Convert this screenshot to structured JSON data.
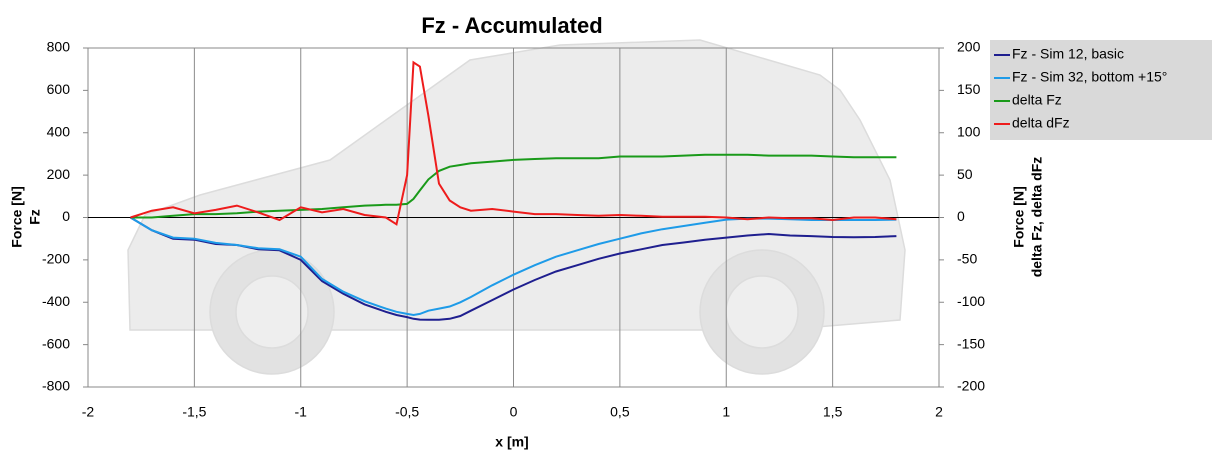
{
  "chart_data": {
    "type": "line",
    "title": "Fz - Accumulated",
    "xlabel": "x [m]",
    "ylabel": [
      "Force [N]",
      "Fz"
    ],
    "y2label": [
      "Force [N]",
      "delta Fz, delta dFz"
    ],
    "x": [
      -1.8,
      -1.7,
      -1.6,
      -1.5,
      -1.4,
      -1.3,
      -1.2,
      -1.1,
      -1.0,
      -0.9,
      -0.8,
      -0.7,
      -0.6,
      -0.55,
      -0.5,
      -0.47,
      -0.44,
      -0.4,
      -0.35,
      -0.3,
      -0.25,
      -0.2,
      -0.1,
      0,
      0.1,
      0.2,
      0.3,
      0.4,
      0.5,
      0.6,
      0.7,
      0.8,
      0.9,
      1.0,
      1.1,
      1.2,
      1.3,
      1.4,
      1.5,
      1.6,
      1.7,
      1.8
    ],
    "series": [
      {
        "name": "Fz - Sim 12, basic",
        "color": "#1f1f8f",
        "values": [
          0,
          -60,
          -100,
          -105,
          -125,
          -130,
          -150,
          -155,
          -200,
          -300,
          -360,
          -410,
          -445,
          -460,
          -470,
          -478,
          -482,
          -483,
          -483,
          -478,
          -465,
          -440,
          -390,
          -340,
          -295,
          -255,
          -225,
          -195,
          -170,
          -150,
          -130,
          -118,
          -105,
          -95,
          -85,
          -78,
          -85,
          -88,
          -92,
          -93,
          -92,
          -88
        ]
      },
      {
        "name": "Fz - Sim 32, bottom +15°",
        "color": "#1e9be8",
        "values": [
          0,
          -60,
          -95,
          -100,
          -120,
          -130,
          -145,
          -150,
          -185,
          -290,
          -350,
          -395,
          -430,
          -445,
          -455,
          -460,
          -455,
          -440,
          -430,
          -420,
          -400,
          -375,
          -320,
          -270,
          -225,
          -185,
          -155,
          -125,
          -100,
          -75,
          -55,
          -40,
          -25,
          -10,
          -5,
          -5,
          -8,
          -12,
          -12,
          -12,
          -12,
          -10
        ]
      },
      {
        "name": "delta Fz",
        "color": "#1a9a1a",
        "axis": "y2",
        "values": [
          0,
          0,
          2,
          4,
          4,
          5,
          7,
          8,
          9,
          10,
          12,
          14,
          15,
          15,
          16,
          22,
          32,
          45,
          55,
          60,
          62,
          64,
          66,
          68,
          69,
          70,
          70,
          70,
          72,
          72,
          72,
          73,
          74,
          74,
          74,
          73,
          73,
          73,
          72,
          71,
          71,
          71
        ]
      },
      {
        "name": "delta dFz",
        "color": "#ee1c1c",
        "axis": "y2",
        "values": [
          0,
          8,
          12,
          5,
          9,
          14,
          6,
          -3,
          12,
          6,
          10,
          3,
          0,
          -8,
          50,
          183,
          178,
          120,
          40,
          20,
          12,
          8,
          10,
          7,
          4,
          4,
          3,
          2,
          3,
          2,
          1,
          1,
          1,
          0,
          -2,
          0,
          -1,
          -1,
          -3,
          0,
          0,
          -2
        ]
      }
    ],
    "xlim": [
      -2,
      2
    ],
    "xticks": [
      -2,
      {
        "value": -1.5,
        "label": "-1,5"
      },
      -1,
      {
        "value": -0.5,
        "label": "-0,5"
      },
      0,
      {
        "value": 0.5,
        "label": "0,5"
      },
      1,
      {
        "value": 1.5,
        "label": "1,5"
      },
      2
    ],
    "ylim": [
      -800,
      800
    ],
    "yticks": [
      -800,
      -600,
      -400,
      -200,
      0,
      200,
      400,
      600,
      800
    ],
    "y2lim": [
      -200,
      200
    ],
    "y2ticks": [
      -200,
      -150,
      -100,
      -50,
      0,
      50,
      100,
      150,
      200
    ],
    "grid": "x",
    "legend": "right"
  }
}
